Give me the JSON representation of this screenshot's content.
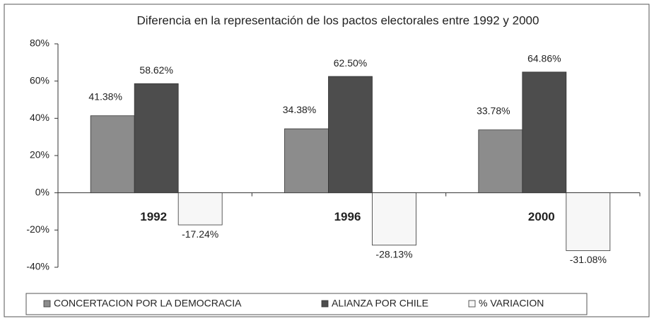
{
  "chart_data": {
    "type": "bar",
    "title": "Diferencia en la representación de los pactos electorales entre 1992 y 2000",
    "categories": [
      "1992",
      "1996",
      "2000"
    ],
    "series": [
      {
        "name": "CONCERTACION POR LA DEMOCRACIA",
        "color": "#8c8c8c",
        "values": [
          41.38,
          34.38,
          33.78
        ],
        "value_labels": [
          "41.38%",
          "34.38%",
          "33.78%"
        ]
      },
      {
        "name": "ALIANZA POR CHILE",
        "color": "#4d4d4d",
        "values": [
          58.62,
          62.5,
          64.86
        ],
        "value_labels": [
          "58.62%",
          "62.50%",
          "64.86%"
        ]
      },
      {
        "name": "% VARIACION",
        "color": "#f7f7f7",
        "values": [
          -17.24,
          -28.13,
          -31.08
        ],
        "value_labels": [
          "-17.24%",
          "-28.13%",
          "-31.08%"
        ]
      }
    ],
    "ylim": [
      -40,
      80
    ],
    "yticks": [
      {
        "value": -40,
        "label": "-40%"
      },
      {
        "value": -20,
        "label": "-20%"
      },
      {
        "value": 0,
        "label": "0%"
      },
      {
        "value": 20,
        "label": "20%"
      },
      {
        "value": 40,
        "label": "40%"
      },
      {
        "value": 60,
        "label": "60%"
      },
      {
        "value": 80,
        "label": "80%"
      }
    ],
    "legend": "bottom"
  }
}
